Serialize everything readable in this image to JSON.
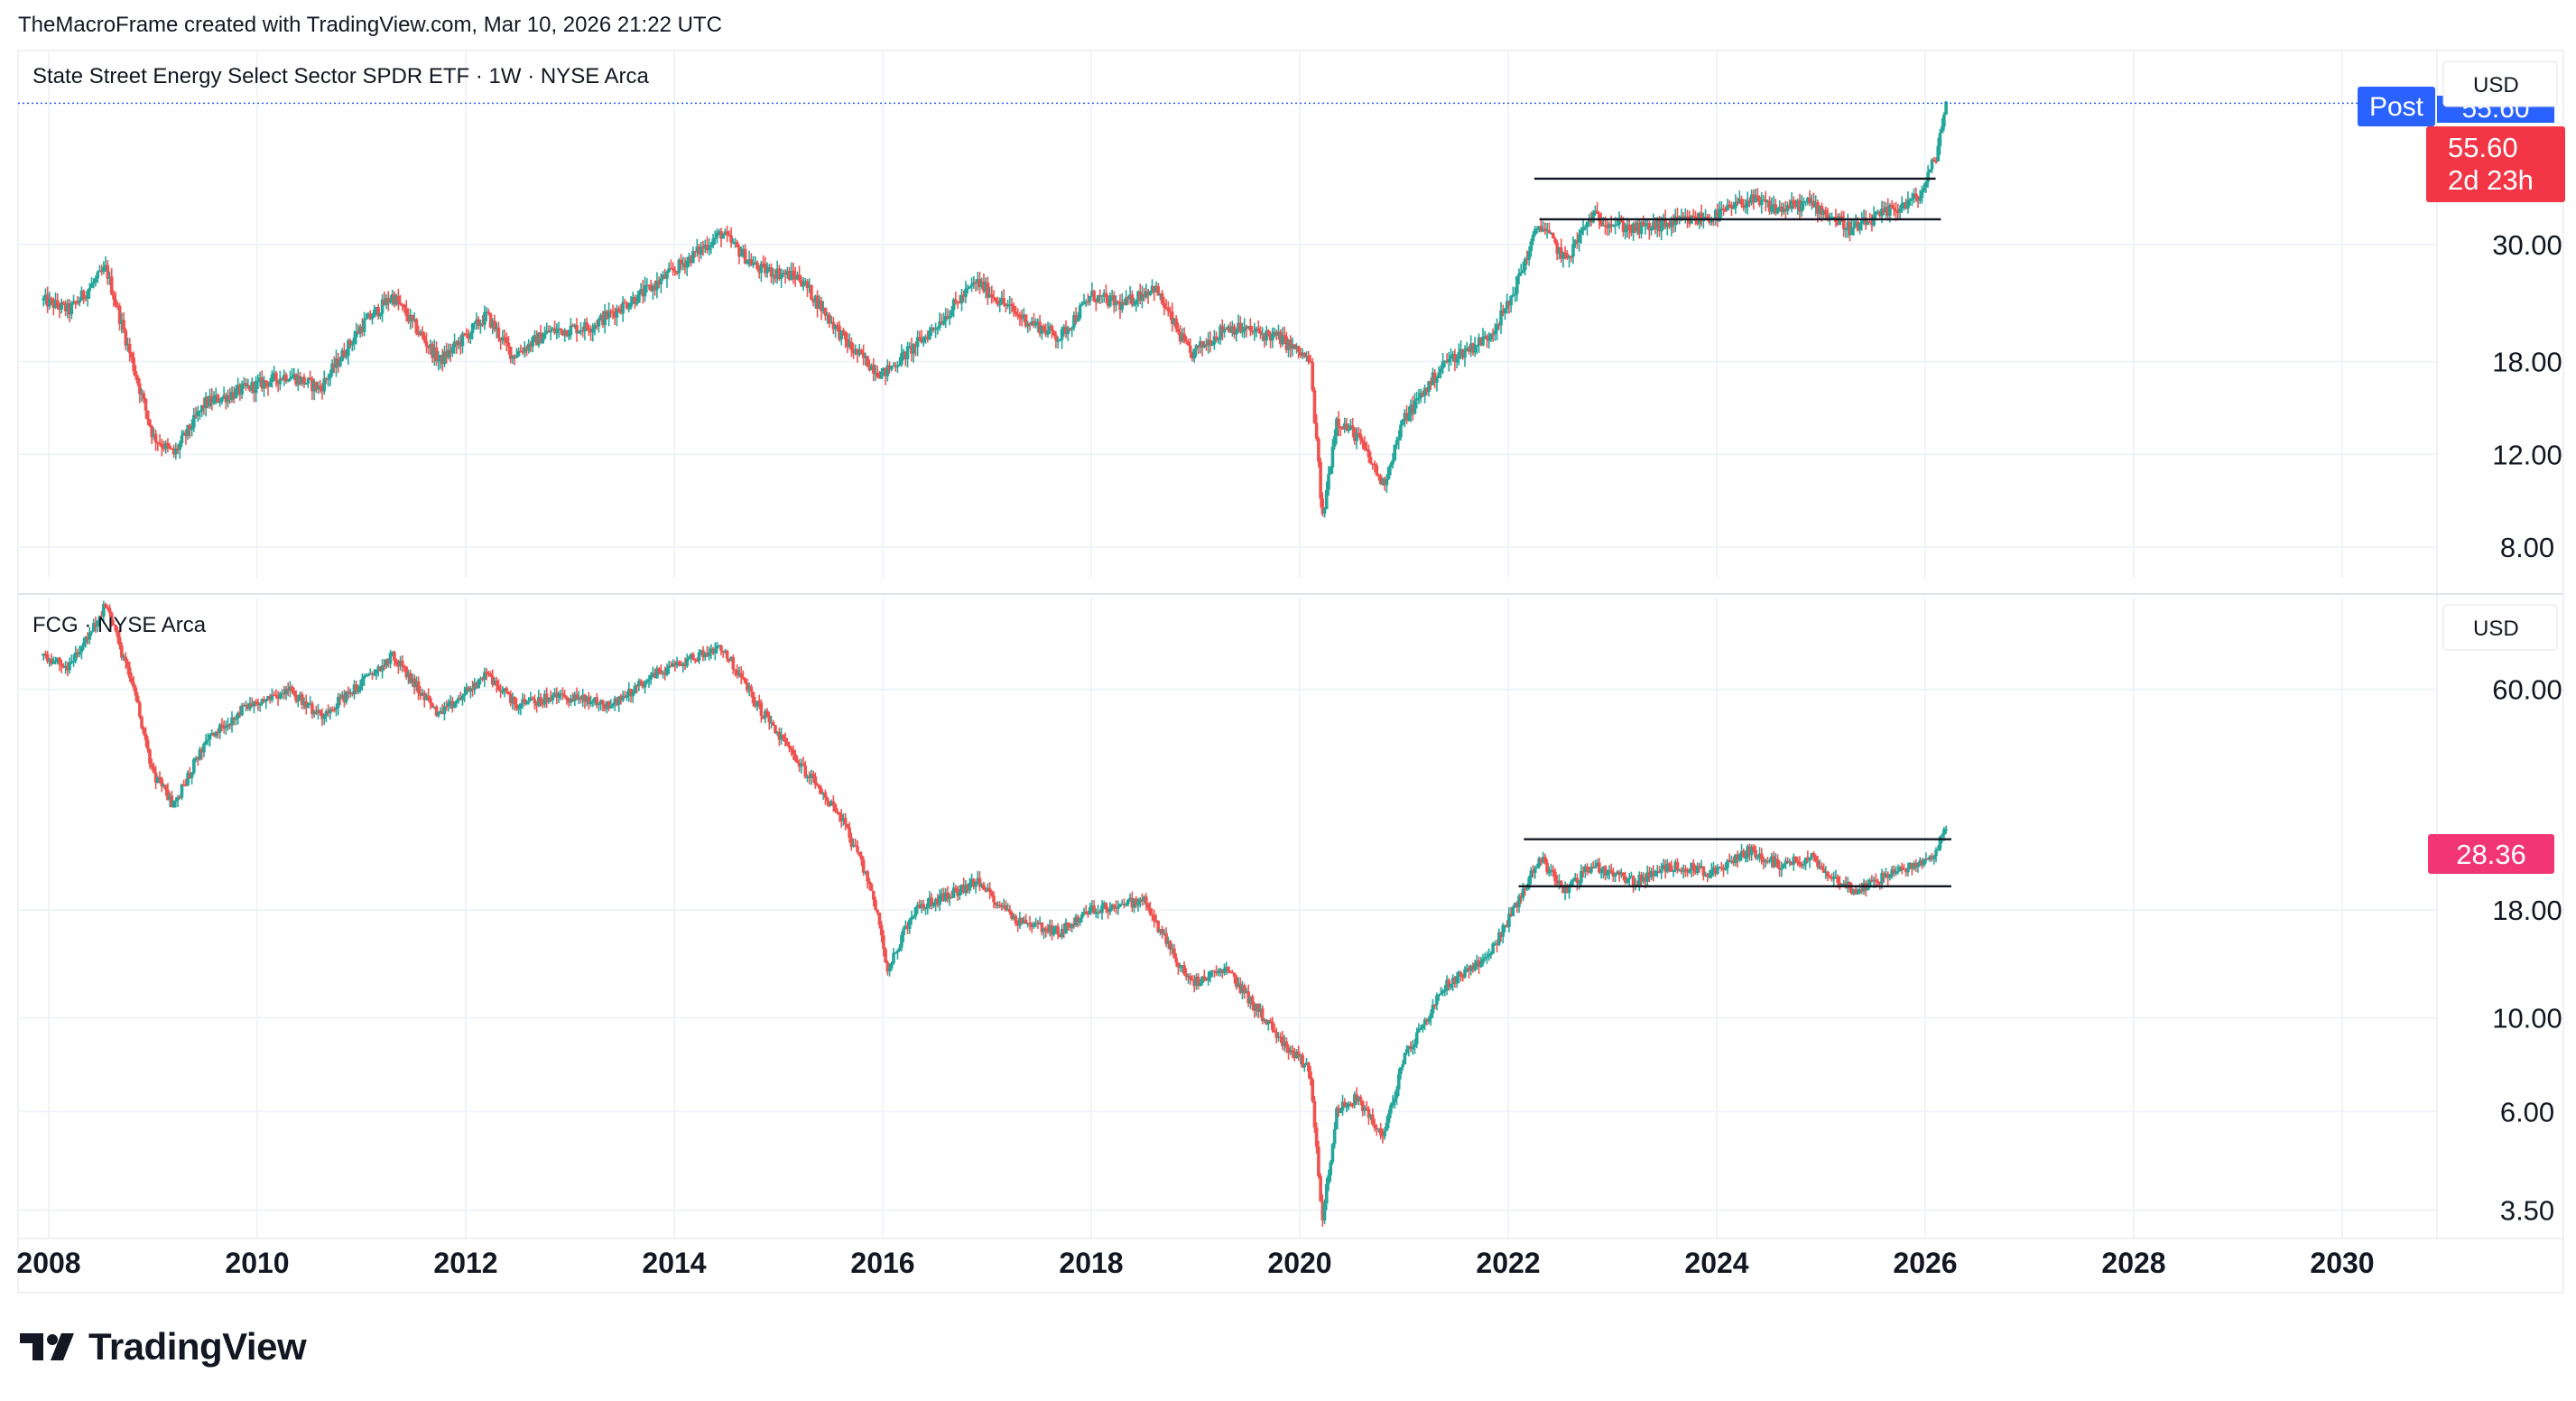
{
  "header": {
    "attribution": "TheMacroFrame created with TradingView.com, Mar 10, 2026 21:22 UTC"
  },
  "brand": {
    "name": "TradingView"
  },
  "colors": {
    "up": "#26a69a",
    "down": "#ef5350",
    "grid": "#f0f3fa",
    "axis_text": "#131722",
    "post_badge": "#2962ff",
    "last_price_red": "#f23645",
    "fcg_badge": "#f23675",
    "dotted_line": "#2962ff"
  },
  "chart_data": [
    {
      "type": "candlestick",
      "title": "State Street Energy Select Sector SPDR ETF · 1W · NYSE Arca",
      "currency": "USD",
      "scale": "log",
      "ylim": [
        7,
        70
      ],
      "y_ticks": [
        8.0,
        12.0,
        18.0,
        30.0
      ],
      "x_range": [
        2008,
        2031
      ],
      "x_ticks": [
        "2008",
        "2010",
        "2012",
        "2014",
        "2016",
        "2018",
        "2020",
        "2022",
        "2024",
        "2026",
        "2028",
        "2030"
      ],
      "grid": true,
      "series_keypoints": [
        [
          2007.95,
          23.5
        ],
        [
          2008.2,
          22.5
        ],
        [
          2008.55,
          27
        ],
        [
          2008.8,
          18
        ],
        [
          2009.0,
          13
        ],
        [
          2009.2,
          12
        ],
        [
          2009.5,
          15
        ],
        [
          2009.9,
          16
        ],
        [
          2010.3,
          17
        ],
        [
          2010.6,
          16
        ],
        [
          2011.0,
          21
        ],
        [
          2011.3,
          24
        ],
        [
          2011.75,
          18
        ],
        [
          2012.2,
          22
        ],
        [
          2012.45,
          18.5
        ],
        [
          2012.8,
          20.5
        ],
        [
          2013.2,
          21
        ],
        [
          2013.8,
          25
        ],
        [
          2014.45,
          31.5
        ],
        [
          2014.8,
          27
        ],
        [
          2015.2,
          26
        ],
        [
          2015.7,
          19
        ],
        [
          2016.0,
          17
        ],
        [
          2016.4,
          20
        ],
        [
          2016.9,
          25.5
        ],
        [
          2017.3,
          22
        ],
        [
          2017.7,
          20
        ],
        [
          2018.0,
          24
        ],
        [
          2018.3,
          23
        ],
        [
          2018.6,
          25
        ],
        [
          2018.95,
          18.5
        ],
        [
          2019.3,
          21
        ],
        [
          2019.8,
          20
        ],
        [
          2020.1,
          18
        ],
        [
          2020.22,
          9
        ],
        [
          2020.35,
          14
        ],
        [
          2020.55,
          13
        ],
        [
          2020.8,
          10.5
        ],
        [
          2021.0,
          14
        ],
        [
          2021.4,
          18
        ],
        [
          2021.8,
          20
        ],
        [
          2022.0,
          23
        ],
        [
          2022.3,
          33
        ],
        [
          2022.55,
          28
        ],
        [
          2022.8,
          34
        ],
        [
          2023.2,
          32
        ],
        [
          2023.6,
          33
        ],
        [
          2024.0,
          34
        ],
        [
          2024.3,
          36.5
        ],
        [
          2024.6,
          35
        ],
        [
          2024.9,
          36
        ],
        [
          2025.3,
          32
        ],
        [
          2025.7,
          35
        ],
        [
          2025.95,
          37
        ],
        [
          2026.1,
          44
        ],
        [
          2026.2,
          55.6
        ]
      ],
      "channel_lines": [
        {
          "from": [
            2022.25,
            40.0
          ],
          "to": [
            2026.1,
            40.0
          ]
        },
        {
          "from": [
            2022.3,
            33.5
          ],
          "to": [
            2026.15,
            33.5
          ]
        }
      ],
      "price_labels": {
        "post": "Post",
        "post_value": "55.60",
        "last_value": "55.60",
        "countdown": "2d 23h"
      }
    },
    {
      "type": "candlestick",
      "title": "FCG · NYSE Arca",
      "currency": "USD",
      "scale": "log",
      "ylim": [
        3,
        100
      ],
      "y_ticks": [
        3.5,
        6.0,
        10.0,
        18.0,
        60.0
      ],
      "x_range": [
        2008,
        2031
      ],
      "x_ticks": [
        "2008",
        "2010",
        "2012",
        "2014",
        "2016",
        "2018",
        "2020",
        "2022",
        "2024",
        "2026",
        "2028",
        "2030"
      ],
      "grid": true,
      "series_keypoints": [
        [
          2007.95,
          72
        ],
        [
          2008.2,
          68
        ],
        [
          2008.55,
          95
        ],
        [
          2008.8,
          62
        ],
        [
          2009.0,
          38
        ],
        [
          2009.2,
          32
        ],
        [
          2009.5,
          45
        ],
        [
          2009.9,
          55
        ],
        [
          2010.3,
          60
        ],
        [
          2010.6,
          52
        ],
        [
          2011.0,
          62
        ],
        [
          2011.3,
          72
        ],
        [
          2011.75,
          52
        ],
        [
          2012.2,
          65
        ],
        [
          2012.5,
          55
        ],
        [
          2012.9,
          58
        ],
        [
          2013.4,
          55
        ],
        [
          2013.8,
          65
        ],
        [
          2014.45,
          76
        ],
        [
          2014.8,
          55
        ],
        [
          2015.2,
          40
        ],
        [
          2015.6,
          30
        ],
        [
          2015.9,
          20
        ],
        [
          2016.05,
          13
        ],
        [
          2016.3,
          18
        ],
        [
          2016.9,
          21
        ],
        [
          2017.3,
          17
        ],
        [
          2017.7,
          16
        ],
        [
          2018.0,
          18
        ],
        [
          2018.5,
          19
        ],
        [
          2018.95,
          12
        ],
        [
          2019.3,
          13
        ],
        [
          2019.8,
          9
        ],
        [
          2020.1,
          7.5
        ],
        [
          2020.22,
          3.3
        ],
        [
          2020.35,
          6
        ],
        [
          2020.55,
          6.5
        ],
        [
          2020.8,
          5.2
        ],
        [
          2021.0,
          8
        ],
        [
          2021.4,
          12
        ],
        [
          2021.8,
          14
        ],
        [
          2022.0,
          17
        ],
        [
          2022.3,
          24
        ],
        [
          2022.55,
          20
        ],
        [
          2022.8,
          23
        ],
        [
          2023.2,
          21
        ],
        [
          2023.6,
          23
        ],
        [
          2024.0,
          22
        ],
        [
          2024.3,
          25
        ],
        [
          2024.6,
          23
        ],
        [
          2024.9,
          24
        ],
        [
          2025.3,
          20
        ],
        [
          2025.7,
          22
        ],
        [
          2025.95,
          23
        ],
        [
          2026.1,
          25
        ],
        [
          2026.2,
          28.36
        ]
      ],
      "channel_lines": [
        {
          "from": [
            2022.15,
            26.5
          ],
          "to": [
            2026.25,
            26.5
          ]
        },
        {
          "from": [
            2022.1,
            20.5
          ],
          "to": [
            2026.25,
            20.5
          ]
        }
      ],
      "price_labels": {
        "last_value": "28.36"
      }
    }
  ]
}
